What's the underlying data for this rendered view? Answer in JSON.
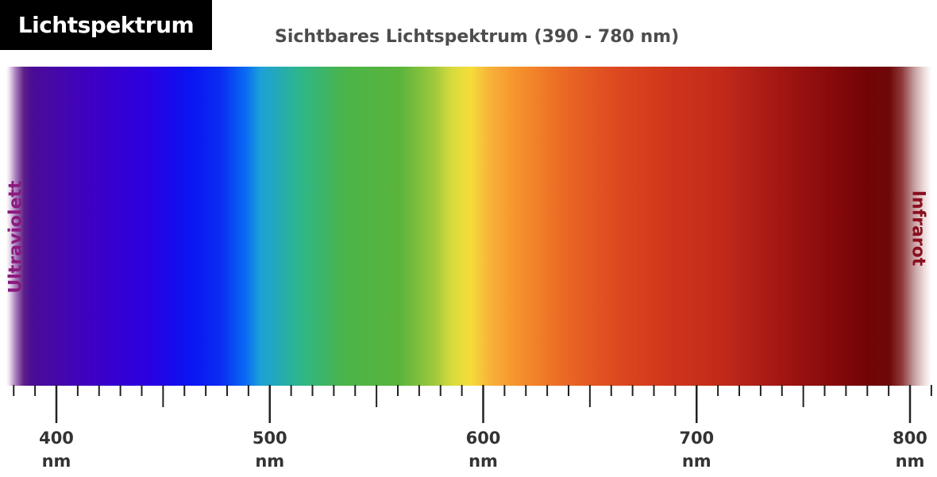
{
  "tag_label": "Lichtspektrum",
  "title": "Sichtbares Lichtspektrum (390 - 780 nm)",
  "side_labels": {
    "left": "Ultraviolett",
    "right": "Infrarot"
  },
  "colors": {
    "tag_background": "#000000",
    "title_text": "#4d4d4d",
    "ultraviolet_text": "#8a1a7e",
    "infrared_text": "#8a0f1e",
    "axis": "#222222"
  },
  "chart_data": {
    "type": "diagram",
    "title": "Sichtbares Lichtspektrum (390 - 780 nm)",
    "visible_range_nm": [
      390,
      780
    ],
    "axis": {
      "unit": "nm",
      "range_nm": [
        380,
        810
      ],
      "major_ticks": [
        400,
        500,
        600,
        700,
        800
      ],
      "minor_step": 10
    },
    "tick_labels": [
      {
        "value": "400",
        "unit": "nm"
      },
      {
        "value": "500",
        "unit": "nm"
      },
      {
        "value": "600",
        "unit": "nm"
      },
      {
        "value": "700",
        "unit": "nm"
      },
      {
        "value": "800",
        "unit": "nm"
      }
    ],
    "regions": [
      "Ultraviolett",
      "Infrarot"
    ]
  }
}
